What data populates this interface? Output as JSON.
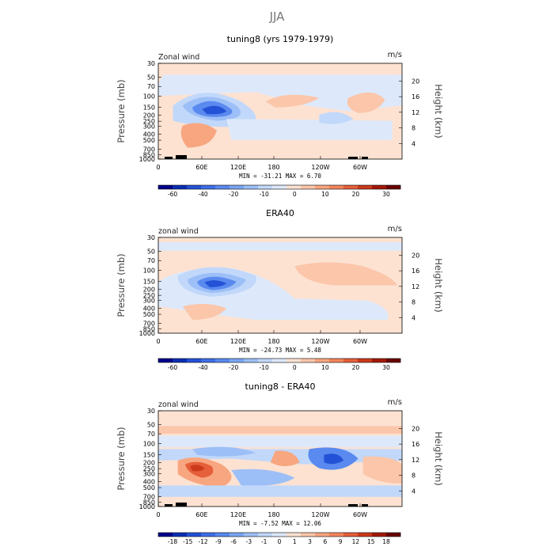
{
  "title": "JJA",
  "chart_data": [
    {
      "type": "heatmap",
      "title": "tuning8 (yrs 1979-1979)",
      "variable_label": "Zonal wind",
      "units": "m/s",
      "ylabel": "Pressure (mb)",
      "y2label": "Height (km)",
      "x_ticks": [
        "0",
        "60E",
        "120E",
        "180",
        "120W",
        "60W"
      ],
      "pressure_ticks": [
        "30",
        "50",
        "70",
        "100",
        "150",
        "200",
        "250",
        "300",
        "400",
        "500",
        "700",
        "850",
        "1000"
      ],
      "height_ticks": [
        "20",
        "16",
        "12",
        "8",
        "4"
      ],
      "min": -31.21,
      "max": 6.7,
      "minmax_text": "MIN = -31.21   MAX =   6.70",
      "colorbar": {
        "labels": [
          "-60",
          "-40",
          "-20",
          "-10",
          "0",
          "10",
          "20",
          "30"
        ],
        "colors": [
          "#00008b",
          "#0a2fb4",
          "#2452d6",
          "#3f6fe8",
          "#5a8aef",
          "#7aa5f3",
          "#9dbff7",
          "#c1d8fa",
          "#dde9fb",
          "#fde2d2",
          "#fbc6aa",
          "#f8a680",
          "#f2855c",
          "#e55f3a",
          "#cc3a1c",
          "#a3190a",
          "#6b0000"
        ]
      }
    },
    {
      "type": "heatmap",
      "title": "ERA40",
      "variable_label": "zonal wind",
      "units": "m/s",
      "ylabel": "Pressure (mb)",
      "y2label": "Height (km)",
      "x_ticks": [
        "0",
        "60E",
        "120E",
        "180",
        "120W",
        "60W"
      ],
      "pressure_ticks": [
        "30",
        "50",
        "70",
        "100",
        "150",
        "200",
        "250",
        "300",
        "400",
        "500",
        "700",
        "850",
        "1000"
      ],
      "height_ticks": [
        "20",
        "16",
        "12",
        "8",
        "4"
      ],
      "min": -24.73,
      "max": 5.48,
      "minmax_text": "MIN = -24.73   MAX =   5.48",
      "colorbar": {
        "labels": [
          "-60",
          "-40",
          "-20",
          "-10",
          "0",
          "10",
          "20",
          "30"
        ],
        "colors": [
          "#00008b",
          "#0a2fb4",
          "#2452d6",
          "#3f6fe8",
          "#5a8aef",
          "#7aa5f3",
          "#9dbff7",
          "#c1d8fa",
          "#dde9fb",
          "#fde2d2",
          "#fbc6aa",
          "#f8a680",
          "#f2855c",
          "#e55f3a",
          "#cc3a1c",
          "#a3190a",
          "#6b0000"
        ]
      }
    },
    {
      "type": "heatmap",
      "title": "tuning8 - ERA40",
      "variable_label": "zonal wind",
      "units": "m/s",
      "ylabel": "Pressure (mb)",
      "y2label": "Height (km)",
      "x_ticks": [
        "0",
        "60E",
        "120E",
        "180",
        "120W",
        "60W"
      ],
      "pressure_ticks": [
        "30",
        "50",
        "70",
        "100",
        "150",
        "200",
        "250",
        "300",
        "400",
        "500",
        "700",
        "850",
        "1000"
      ],
      "height_ticks": [
        "20",
        "16",
        "12",
        "8",
        "4"
      ],
      "min": -7.52,
      "max": 12.06,
      "minmax_text": "MIN =  -7.52   MAX =  12.06",
      "colorbar": {
        "labels": [
          "-18",
          "-15",
          "-12",
          "-9",
          "-6",
          "-3",
          "-1",
          "0",
          "1",
          "3",
          "6",
          "9",
          "12",
          "15",
          "18"
        ],
        "colors": [
          "#00008b",
          "#0a2fb4",
          "#2452d6",
          "#3f6fe8",
          "#5a8aef",
          "#7aa5f3",
          "#9dbff7",
          "#c1d8fa",
          "#dde9fb",
          "#fde2d2",
          "#fbc6aa",
          "#f8a680",
          "#f2855c",
          "#e55f3a",
          "#cc3a1c",
          "#a3190a",
          "#6b0000"
        ]
      }
    }
  ]
}
